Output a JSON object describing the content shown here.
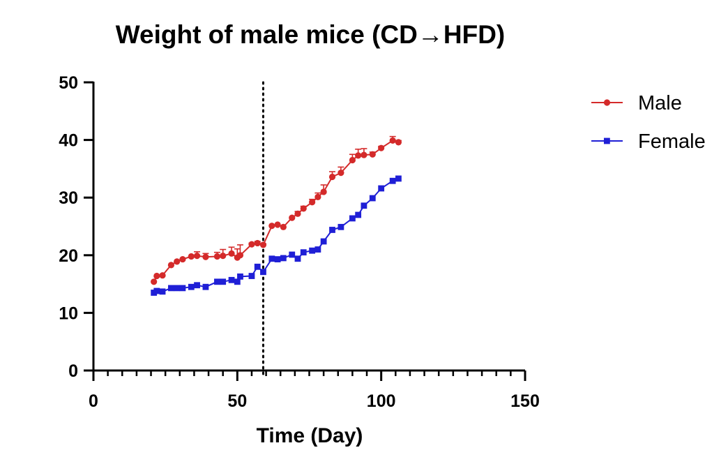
{
  "chart_data": {
    "type": "line",
    "title": "Weight of male mice (CD→HFD)",
    "xlabel": "Time (Day)",
    "ylabel": "",
    "xlim": [
      0,
      150
    ],
    "ylim": [
      0,
      50
    ],
    "x_ticks": [
      0,
      50,
      100,
      150
    ],
    "y_ticks": [
      0,
      10,
      20,
      30,
      40,
      50
    ],
    "x_minor_step": 5,
    "vline_x": 59,
    "grid": false,
    "legend_position": "top-right",
    "series": [
      {
        "name": "Male",
        "color": "#d42a2a",
        "marker": "circle",
        "x": [
          21,
          22,
          24,
          27,
          29,
          31,
          34,
          36,
          39,
          43,
          45,
          48,
          50,
          51,
          55,
          57,
          59,
          62,
          64,
          66,
          69,
          71,
          73,
          76,
          78,
          80,
          83,
          86,
          90,
          92,
          94,
          97,
          100,
          104,
          106
        ],
        "y": [
          15.4,
          16.4,
          16.5,
          18.3,
          18.9,
          19.3,
          19.8,
          19.9,
          19.7,
          19.8,
          19.9,
          20.3,
          19.6,
          20.0,
          21.9,
          22.1,
          21.8,
          25.1,
          25.3,
          24.9,
          26.5,
          27.2,
          28.1,
          29.2,
          30.1,
          31.0,
          33.6,
          34.3,
          36.5,
          37.3,
          37.4,
          37.5,
          38.6,
          39.9,
          39.6
        ],
        "error": [
          0,
          0,
          0,
          0,
          0,
          0,
          0,
          0.7,
          0.6,
          0.7,
          1.1,
          1.1,
          1.5,
          1.8,
          0.2,
          0.3,
          0.2,
          0,
          0,
          0,
          0,
          0.4,
          0.4,
          0.5,
          0.7,
          1.2,
          0.9,
          1.0,
          1.0,
          1.1,
          1.1,
          0.4,
          0.3,
          0.7,
          0.3
        ]
      },
      {
        "name": "Female",
        "color": "#1f1fd6",
        "marker": "square",
        "x": [
          21,
          22,
          24,
          27,
          29,
          31,
          34,
          36,
          39,
          43,
          45,
          48,
          50,
          51,
          55,
          57,
          59,
          62,
          64,
          66,
          69,
          71,
          73,
          76,
          78,
          80,
          83,
          86,
          90,
          92,
          94,
          97,
          100,
          104,
          106
        ],
        "y": [
          13.5,
          13.8,
          13.7,
          14.3,
          14.3,
          14.3,
          14.5,
          14.8,
          14.5,
          15.4,
          15.4,
          15.7,
          15.4,
          16.3,
          16.4,
          18.0,
          17.1,
          19.4,
          19.3,
          19.5,
          20.1,
          19.4,
          20.5,
          20.8,
          21.0,
          22.4,
          24.4,
          24.9,
          26.4,
          27.0,
          28.6,
          29.9,
          31.6,
          32.9,
          33.3
        ],
        "error": [
          0,
          0,
          0,
          0,
          0,
          0,
          0,
          0,
          0,
          0,
          0,
          0,
          0,
          0,
          0,
          0,
          0,
          0,
          0,
          0,
          0,
          0,
          0,
          0,
          0,
          0,
          0,
          0,
          0,
          0,
          0,
          0,
          0,
          0,
          0
        ]
      }
    ]
  }
}
